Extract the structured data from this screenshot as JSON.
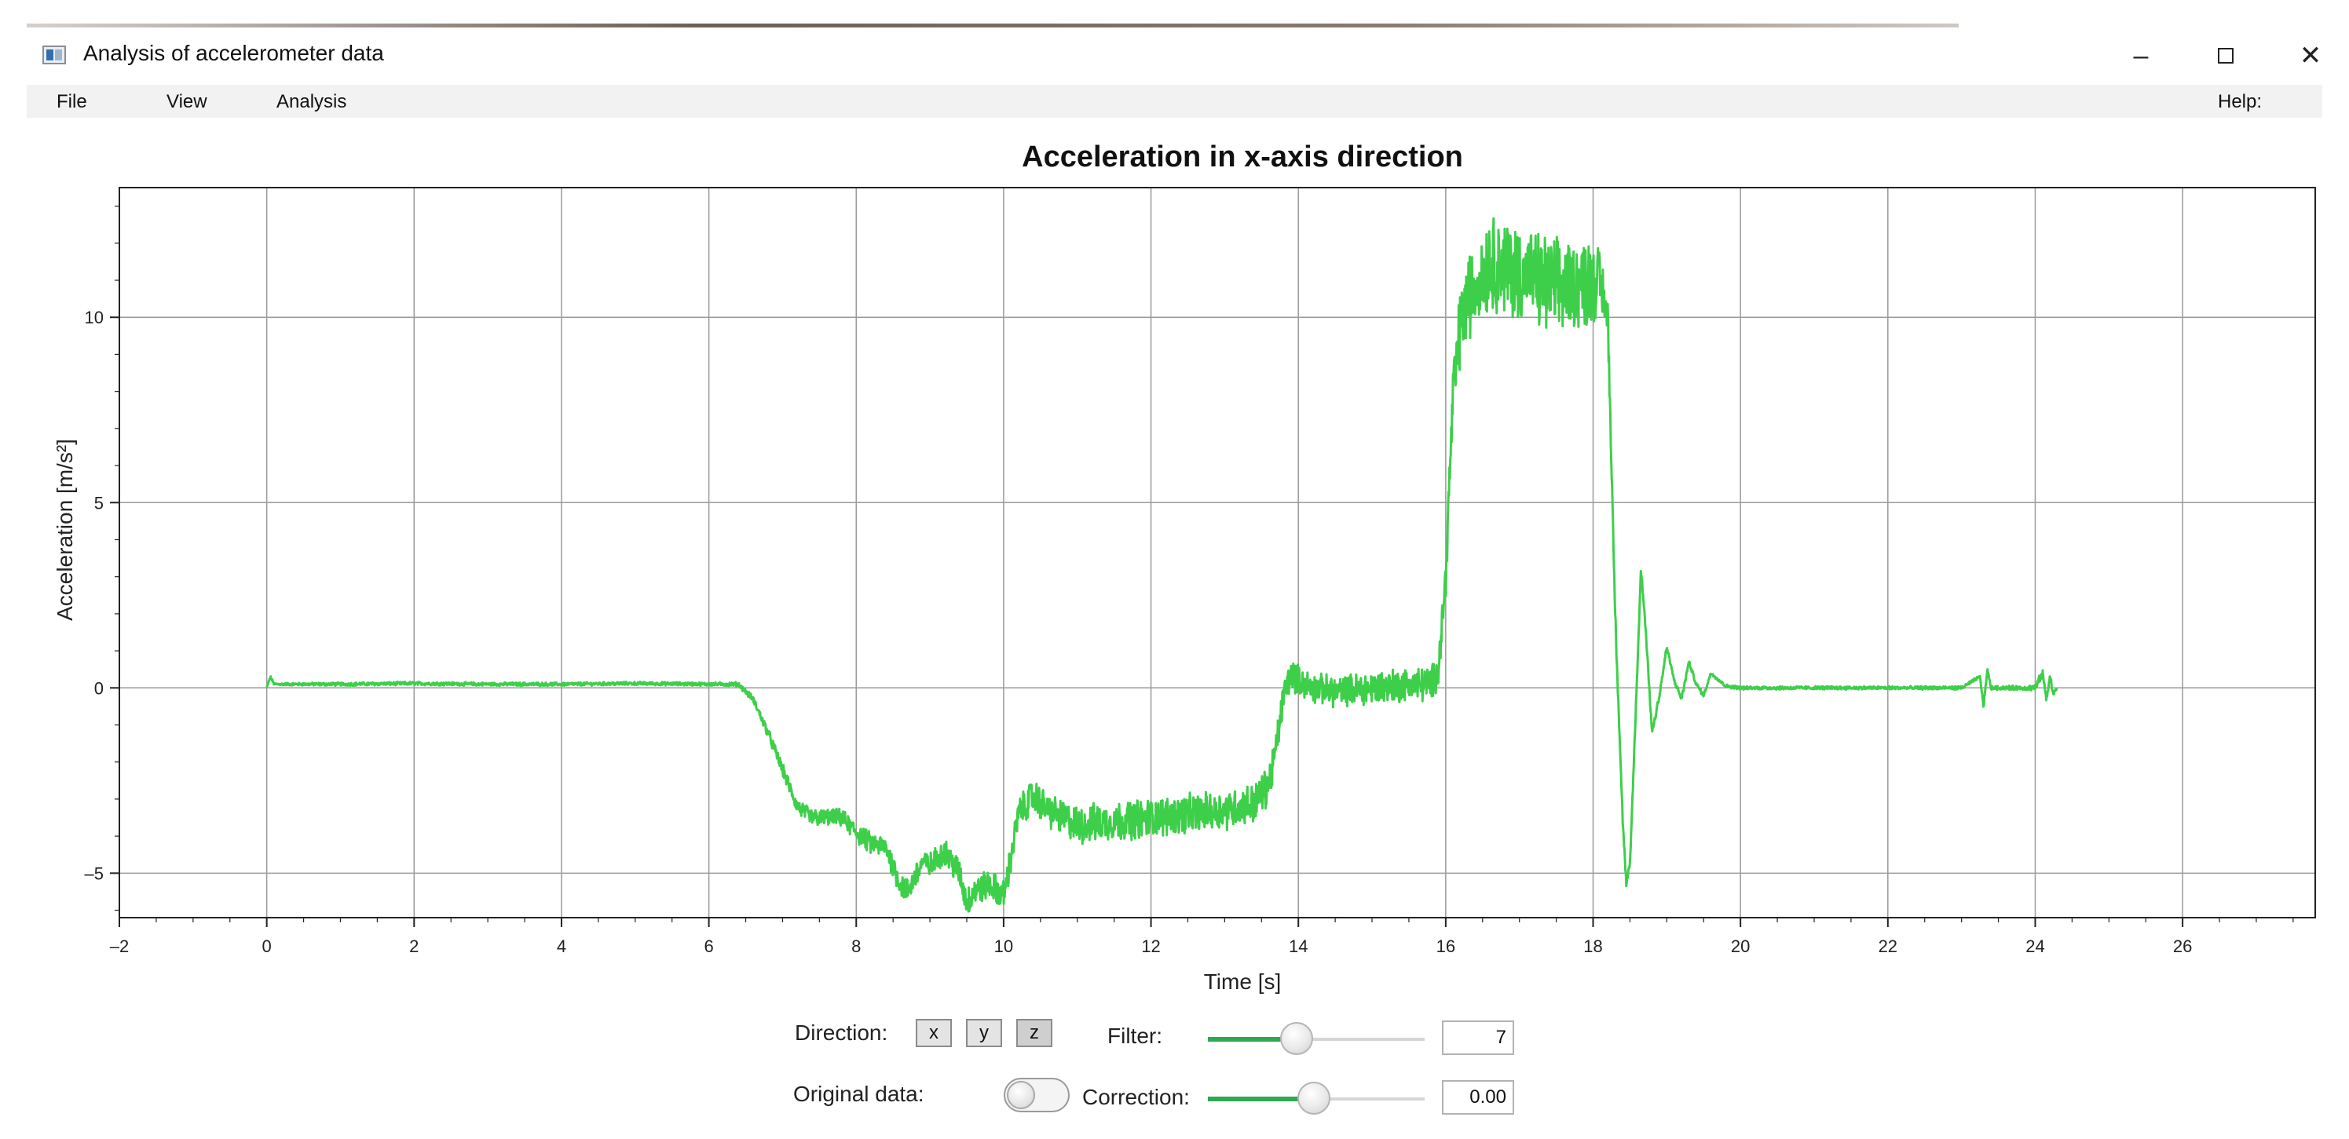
{
  "window": {
    "title": "Analysis of accelerometer data",
    "minimize_symbol": "–",
    "close_symbol": "✕"
  },
  "menu": {
    "items": [
      "File",
      "View",
      "Analysis"
    ],
    "help": "Help:"
  },
  "chart_data": {
    "type": "line",
    "title": "Acceleration in x-axis direction",
    "xlabel": "Time [s]",
    "ylabel": "Acceleration [m/s²]",
    "xlim": [
      -2,
      27.8
    ],
    "ylim": [
      -6.2,
      13.5
    ],
    "x_ticks": [
      -2,
      0,
      2,
      4,
      6,
      8,
      10,
      12,
      14,
      16,
      18,
      20,
      22,
      24,
      26
    ],
    "x_tick_labels": [
      "–2",
      "0",
      "2",
      "4",
      "6",
      "8",
      "10",
      "12",
      "14",
      "16",
      "18",
      "20",
      "22",
      "24",
      "26"
    ],
    "y_ticks": [
      -5,
      0,
      5,
      10
    ],
    "y_tick_labels": [
      "–5",
      "0",
      "5",
      "10"
    ],
    "grid": true,
    "legend": "none",
    "series": [
      {
        "color": "#3ecf4a",
        "x": [
          0,
          0.05,
          0.1,
          1,
          2,
          3,
          4,
          5,
          6,
          6.4,
          6.6,
          6.8,
          7.0,
          7.2,
          7.4,
          7.8,
          8.0,
          8.2,
          8.4,
          8.6,
          8.7,
          8.8,
          8.9,
          9.0,
          9.2,
          9.4,
          9.5,
          9.6,
          9.8,
          10.0,
          10.1,
          10.2,
          10.4,
          10.6,
          10.8,
          11.0,
          11.5,
          12.0,
          12.5,
          13.0,
          13.4,
          13.6,
          13.7,
          13.8,
          13.9,
          14.0,
          14.2,
          14.5,
          15.0,
          15.5,
          15.8,
          15.9,
          16.0,
          16.1,
          16.2,
          16.3,
          16.5,
          16.6,
          17.0,
          17.5,
          18.0,
          18.1,
          18.2,
          18.3,
          18.4,
          18.45,
          18.5,
          18.6,
          18.65,
          18.7,
          18.8,
          18.9,
          19.0,
          19.1,
          19.2,
          19.3,
          19.4,
          19.5,
          19.6,
          19.8,
          20.0,
          21.0,
          22.0,
          23.0,
          23.25,
          23.3,
          23.35,
          23.4,
          23.6,
          23.8,
          24.0,
          24.1,
          24.15,
          24.2,
          24.25,
          24.3
        ],
        "y": [
          0,
          0.3,
          0.1,
          0.1,
          0.12,
          0.1,
          0.1,
          0.12,
          0.1,
          0.1,
          -0.3,
          -1.2,
          -2.2,
          -3.2,
          -3.5,
          -3.5,
          -3.9,
          -4.2,
          -4.3,
          -5.3,
          -5.5,
          -5.1,
          -4.7,
          -4.8,
          -4.4,
          -5.0,
          -5.8,
          -5.5,
          -5.3,
          -5.6,
          -4.6,
          -3.4,
          -2.9,
          -3.3,
          -3.5,
          -3.7,
          -3.6,
          -3.5,
          -3.4,
          -3.3,
          -3.1,
          -2.6,
          -1.6,
          -0.2,
          0.4,
          0.2,
          0.0,
          -0.1,
          0.0,
          0.1,
          0.1,
          0.5,
          3.0,
          8.0,
          9.8,
          10.5,
          11.2,
          11.5,
          11.2,
          10.8,
          11.0,
          10.9,
          10.0,
          2.0,
          -3.5,
          -5.3,
          -4.8,
          0.5,
          3.2,
          2.0,
          -1.2,
          -0.2,
          1.1,
          0.2,
          -0.3,
          0.7,
          0.1,
          -0.2,
          0.4,
          0.05,
          0.0,
          0.0,
          0.0,
          0.0,
          0.3,
          -0.5,
          0.5,
          0.0,
          0.0,
          0.0,
          0.0,
          0.4,
          -0.3,
          0.3,
          -0.2,
          0.05
        ],
        "noise": [
          0.03,
          0.03,
          0.03,
          0.04,
          0.04,
          0.04,
          0.04,
          0.04,
          0.04,
          0.05,
          0.08,
          0.12,
          0.15,
          0.18,
          0.2,
          0.2,
          0.25,
          0.25,
          0.25,
          0.3,
          0.3,
          0.3,
          0.3,
          0.3,
          0.3,
          0.35,
          0.35,
          0.35,
          0.35,
          0.35,
          0.35,
          0.35,
          0.4,
          0.4,
          0.4,
          0.45,
          0.45,
          0.45,
          0.45,
          0.45,
          0.45,
          0.45,
          0.4,
          0.4,
          0.35,
          0.35,
          0.35,
          0.35,
          0.4,
          0.4,
          0.4,
          0.4,
          0.5,
          0.7,
          0.9,
          1.0,
          1.1,
          1.1,
          1.1,
          1.1,
          1.0,
          0.8,
          0.4,
          0.2,
          0.1,
          0.1,
          0.1,
          0.1,
          0.1,
          0.1,
          0.1,
          0.08,
          0.08,
          0.06,
          0.06,
          0.05,
          0.05,
          0.05,
          0.04,
          0.04,
          0.04,
          0.04,
          0.04,
          0.04,
          0.04,
          0.04,
          0.04,
          0.04,
          0.05,
          0.05,
          0.08,
          0.1,
          0.1,
          0.1,
          0.08,
          0.05
        ]
      }
    ]
  },
  "controls": {
    "direction_label": "Direction:",
    "direction_buttons": [
      "x",
      "y",
      "z"
    ],
    "filter_label": "Filter:",
    "filter_level": 0.41,
    "filter_value": "7",
    "original_data_label": "Original data:",
    "correction_label": "Correction:",
    "correction_level": 0.49,
    "correction_value": "0.00"
  }
}
